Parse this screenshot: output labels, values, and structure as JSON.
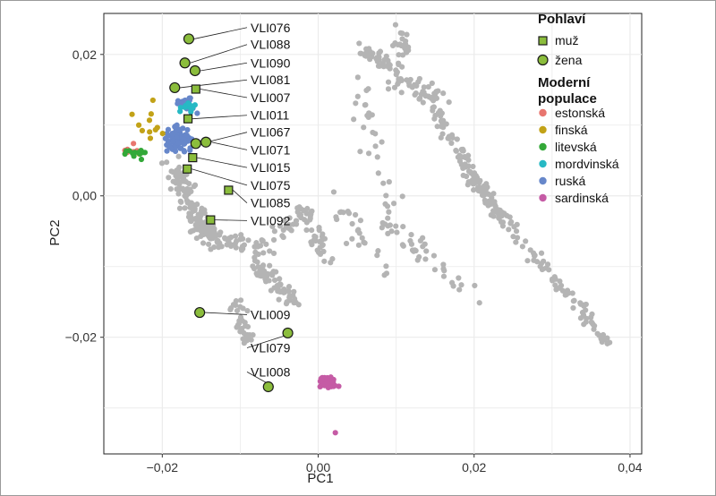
{
  "chart_data": {
    "type": "scatter",
    "xlabel": "PC1",
    "ylabel": "PC2",
    "xlim": [
      -0.0275,
      0.0415
    ],
    "ylim": [
      -0.0365,
      0.0258
    ],
    "x_ticks": [
      -0.02,
      0.0,
      0.02,
      0.04
    ],
    "y_ticks": [
      -0.02,
      0.0,
      0.02
    ],
    "x_tick_labels": [
      "−0,02",
      "0,00",
      "0,02",
      "0,04"
    ],
    "y_tick_labels": [
      "−0,02",
      "0,00",
      "0,02"
    ],
    "grid": true,
    "legend_position": "top-right",
    "legend": {
      "sex_title": "Pohlaví",
      "sex_entries": [
        {
          "label": "muž",
          "shape": "square"
        },
        {
          "label": "žena",
          "shape": "circle"
        }
      ],
      "population_title_line1": "Moderní",
      "population_title_line2": "populace",
      "population_entries": [
        {
          "label": "estonská",
          "color": "#e8766f"
        },
        {
          "label": "finská",
          "color": "#c2a217"
        },
        {
          "label": "litevská",
          "color": "#33a838"
        },
        {
          "label": "mordvinská",
          "color": "#27b9c4"
        },
        {
          "label": "ruská",
          "color": "#6787ca"
        },
        {
          "label": "sardinská",
          "color": "#c55ba5"
        }
      ]
    },
    "background_color": "#b4b4b4",
    "ancient_color": "#8bbd3c",
    "ancient_samples": [
      {
        "id": "VLI076",
        "sex": "žena",
        "x": -0.0166,
        "y": 0.0222,
        "label_y": 0.0238
      },
      {
        "id": "VLI088",
        "sex": "žena",
        "x": -0.0171,
        "y": 0.0188,
        "label_y": 0.0214
      },
      {
        "id": "VLI090",
        "sex": "žena",
        "x": -0.0158,
        "y": 0.0177,
        "label_y": 0.0188
      },
      {
        "id": "VLI081",
        "sex": "žena",
        "x": -0.0184,
        "y": 0.0153,
        "label_y": 0.0164
      },
      {
        "id": "VLI007",
        "sex": "muž",
        "x": -0.0157,
        "y": 0.0151,
        "label_y": 0.0139
      },
      {
        "id": "VLI011",
        "sex": "muž",
        "x": -0.0167,
        "y": 0.0109,
        "label_y": 0.0114
      },
      {
        "id": "VLI067",
        "sex": "žena",
        "x": -0.0157,
        "y": 0.0074,
        "label_y": 0.009
      },
      {
        "id": "VLI071",
        "sex": "žena",
        "x": -0.0144,
        "y": 0.0076,
        "label_y": 0.0065
      },
      {
        "id": "VLI015",
        "sex": "muž",
        "x": -0.0161,
        "y": 0.0054,
        "label_y": 0.004
      },
      {
        "id": "VLI075",
        "sex": "muž",
        "x": -0.0168,
        "y": 0.0038,
        "label_y": 0.0015
      },
      {
        "id": "VLI085",
        "sex": "muž",
        "x": -0.0115,
        "y": 0.0008,
        "label_y": -0.001
      },
      {
        "id": "VLI092",
        "sex": "muž",
        "x": -0.0138,
        "y": -0.0034,
        "label_y": -0.0035
      },
      {
        "id": "VLI009",
        "sex": "žena",
        "x": -0.0152,
        "y": -0.0165,
        "label_y": -0.0168
      },
      {
        "id": "VLI079",
        "sex": "žena",
        "x": -0.0039,
        "y": -0.0194,
        "label_y": -0.0215
      },
      {
        "id": "VLI008",
        "sex": "žena",
        "x": -0.0064,
        "y": -0.027,
        "label_y": -0.0249
      }
    ]
  }
}
